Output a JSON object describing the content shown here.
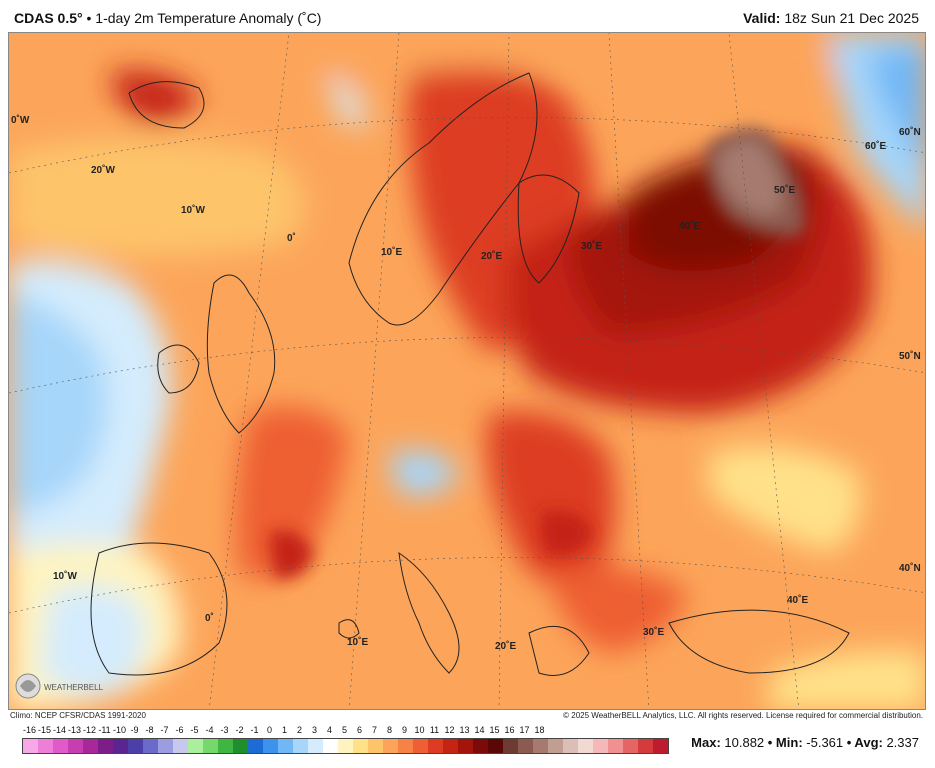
{
  "header": {
    "product": "CDAS 0.5°",
    "description": " • 1-day 2m Temperature Anomaly (˚C)",
    "valid_label": "Valid:",
    "valid_time": " 18z Sun 21 Dec 2025"
  },
  "map": {
    "region": "Europe",
    "longitude_labels": [
      "0˚W",
      "20˚W",
      "10˚W",
      "0˚",
      "10˚E",
      "20˚E",
      "30˚E",
      "40˚E",
      "50˚E",
      "60˚E",
      "60˚N",
      "50˚N",
      "40˚N",
      "10˚W",
      "0˚",
      "10˚E",
      "20˚E",
      "30˚E",
      "40˚E"
    ],
    "logo_text": "WEATHERBELL"
  },
  "footer": {
    "climo": "Climo: NCEP CFSR/CDAS 1991-2020",
    "copyright": "© 2025 WeatherBELL Analytics, LLC. All rights reserved. License required for commercial distribution.",
    "max_label": "Max:",
    "max_value": " 10.882",
    "min_label": " • Min:",
    "min_value": " -5.361",
    "avg_label": " • Avg:",
    "avg_value": " 2.337"
  },
  "colorbar": {
    "ticks": [
      "-16",
      "-15",
      "-14",
      "-13",
      "-12",
      "-11",
      "-10",
      "-9",
      "-8",
      "-7",
      "-6",
      "-5",
      "-4",
      "-3",
      "-2",
      "-1",
      "0",
      "1",
      "2",
      "3",
      "4",
      "5",
      "6",
      "7",
      "8",
      "9",
      "10",
      "11",
      "12",
      "13",
      "14",
      "15",
      "16",
      "17",
      "18"
    ],
    "colors": [
      "#f7a8e8",
      "#ee7fd8",
      "#e05bc8",
      "#c83db0",
      "#a8289a",
      "#7d1d8a",
      "#5a2590",
      "#4d3fa8",
      "#6a6ac8",
      "#9c9ce0",
      "#c8c8ee",
      "#a9ef9d",
      "#75d86a",
      "#3fb642",
      "#1e8f2c",
      "#1e6bd6",
      "#3d93ec",
      "#71b7f5",
      "#a6d6fa",
      "#d4ecfd",
      "#ffffff",
      "#fff4c0",
      "#ffe189",
      "#fdc46a",
      "#fca55a",
      "#f78245",
      "#ee5f33",
      "#dd3c22",
      "#c42414",
      "#a5140b",
      "#7c0a06",
      "#5a0706",
      "#6e3b33",
      "#8c5a4f",
      "#a67a6e",
      "#c19d92",
      "#dbbfb6",
      "#f2d9d2",
      "#f5b8b8",
      "#f09090",
      "#e56464",
      "#d63b3b",
      "#c01a2f"
    ]
  }
}
